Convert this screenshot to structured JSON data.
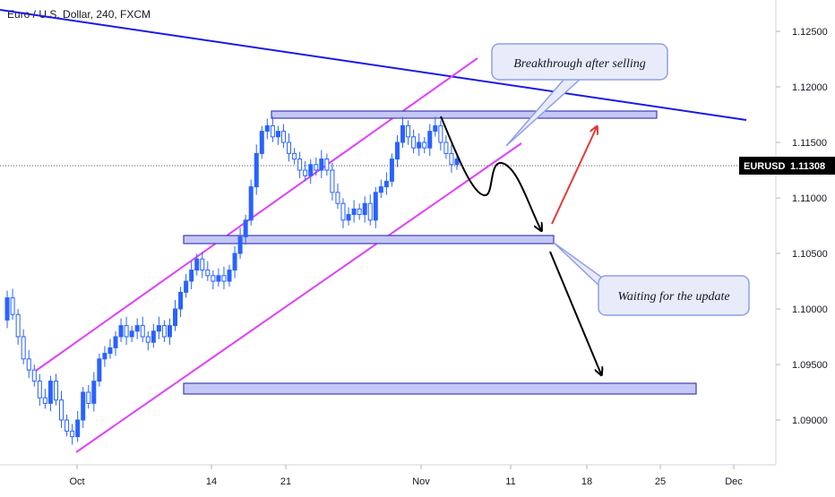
{
  "chart_data": {
    "type": "candlestick",
    "title": "Euro / U.S. Dollar, 240, FXCM",
    "symbol": "EURUSD",
    "last_price": "1.11308",
    "x_ticks": [
      "Oct",
      "14",
      "21",
      "Nov",
      "11",
      "18",
      "25",
      "Dec"
    ],
    "y_ticks": [
      "1.12500",
      "1.12000",
      "1.11500",
      "1.11000",
      "1.10500",
      "1.10000",
      "1.09500",
      "1.09000"
    ],
    "ylim": [
      1.0865,
      1.1275
    ],
    "grid": false,
    "price_path": [
      [
        0,
        1.099
      ],
      [
        1,
        1.101
      ],
      [
        2,
        1.0995
      ],
      [
        3,
        1.0975
      ],
      [
        4,
        1.0955
      ],
      [
        5,
        1.0945
      ],
      [
        6,
        1.0935
      ],
      [
        7,
        1.092
      ],
      [
        8,
        1.0915
      ],
      [
        9,
        1.0935
      ],
      [
        10,
        1.0918
      ],
      [
        11,
        1.09
      ],
      [
        12,
        1.089
      ],
      [
        13,
        1.0885
      ],
      [
        14,
        1.09
      ],
      [
        15,
        1.0925
      ],
      [
        16,
        1.0915
      ],
      [
        17,
        1.0935
      ],
      [
        18,
        1.0955
      ],
      [
        19,
        1.096
      ],
      [
        20,
        1.0965
      ],
      [
        21,
        1.0975
      ],
      [
        22,
        1.0985
      ],
      [
        23,
        1.0975
      ],
      [
        24,
        1.098
      ],
      [
        25,
        1.0985
      ],
      [
        26,
        1.0975
      ],
      [
        27,
        1.097
      ],
      [
        28,
        1.098
      ],
      [
        29,
        1.0985
      ],
      [
        30,
        1.0975
      ],
      [
        31,
        1.0985
      ],
      [
        32,
        1.1
      ],
      [
        33,
        1.1015
      ],
      [
        34,
        1.1025
      ],
      [
        35,
        1.1035
      ],
      [
        36,
        1.1045
      ],
      [
        37,
        1.1035
      ],
      [
        38,
        1.103
      ],
      [
        39,
        1.1025
      ],
      [
        40,
        1.103
      ],
      [
        41,
        1.1025
      ],
      [
        42,
        1.1035
      ],
      [
        43,
        1.105
      ],
      [
        44,
        1.1065
      ],
      [
        45,
        1.108
      ],
      [
        46,
        1.111
      ],
      [
        47,
        1.114
      ],
      [
        48,
        1.116
      ],
      [
        49,
        1.1165
      ],
      [
        50,
        1.1155
      ],
      [
        51,
        1.116
      ],
      [
        52,
        1.115
      ],
      [
        53,
        1.114
      ],
      [
        54,
        1.1135
      ],
      [
        55,
        1.1125
      ],
      [
        56,
        1.112
      ],
      [
        57,
        1.113
      ],
      [
        58,
        1.1125
      ],
      [
        59,
        1.1135
      ],
      [
        60,
        1.1125
      ],
      [
        61,
        1.1105
      ],
      [
        62,
        1.1095
      ],
      [
        63,
        1.108
      ],
      [
        64,
        1.1085
      ],
      [
        65,
        1.109
      ],
      [
        66,
        1.1085
      ],
      [
        67,
        1.1095
      ],
      [
        68,
        1.108
      ],
      [
        69,
        1.1105
      ],
      [
        70,
        1.111
      ],
      [
        71,
        1.1115
      ],
      [
        72,
        1.1135
      ],
      [
        73,
        1.115
      ],
      [
        74,
        1.1165
      ],
      [
        75,
        1.1155
      ],
      [
        76,
        1.1145
      ],
      [
        77,
        1.115
      ],
      [
        78,
        1.1145
      ],
      [
        79,
        1.116
      ],
      [
        80,
        1.1165
      ],
      [
        81,
        1.115
      ],
      [
        82,
        1.114
      ],
      [
        83,
        1.113
      ],
      [
        84,
        1.1135
      ]
    ],
    "support_resistance_zones": [
      {
        "from": 1.1175,
        "to": 1.1181
      },
      {
        "from": 1.1064,
        "to": 1.1072
      },
      {
        "from": 1.0932,
        "to": 1.0941
      }
    ],
    "annotations": {
      "callout_1": "Breakthrough after selling",
      "callout_2": "Waiting for the update"
    },
    "colors": {
      "candle": "#2962ff",
      "channel": "#e040fb",
      "trendline": "#1a1ae6",
      "zone_fill": "#c5c8f5",
      "zone_stroke": "#3d3db8",
      "bull_arrow": "#e53935",
      "path_arrow": "#000000",
      "callout_fill": "#e8ecfa",
      "callout_stroke": "#8f9fe8",
      "price_tag": "#000000"
    }
  }
}
